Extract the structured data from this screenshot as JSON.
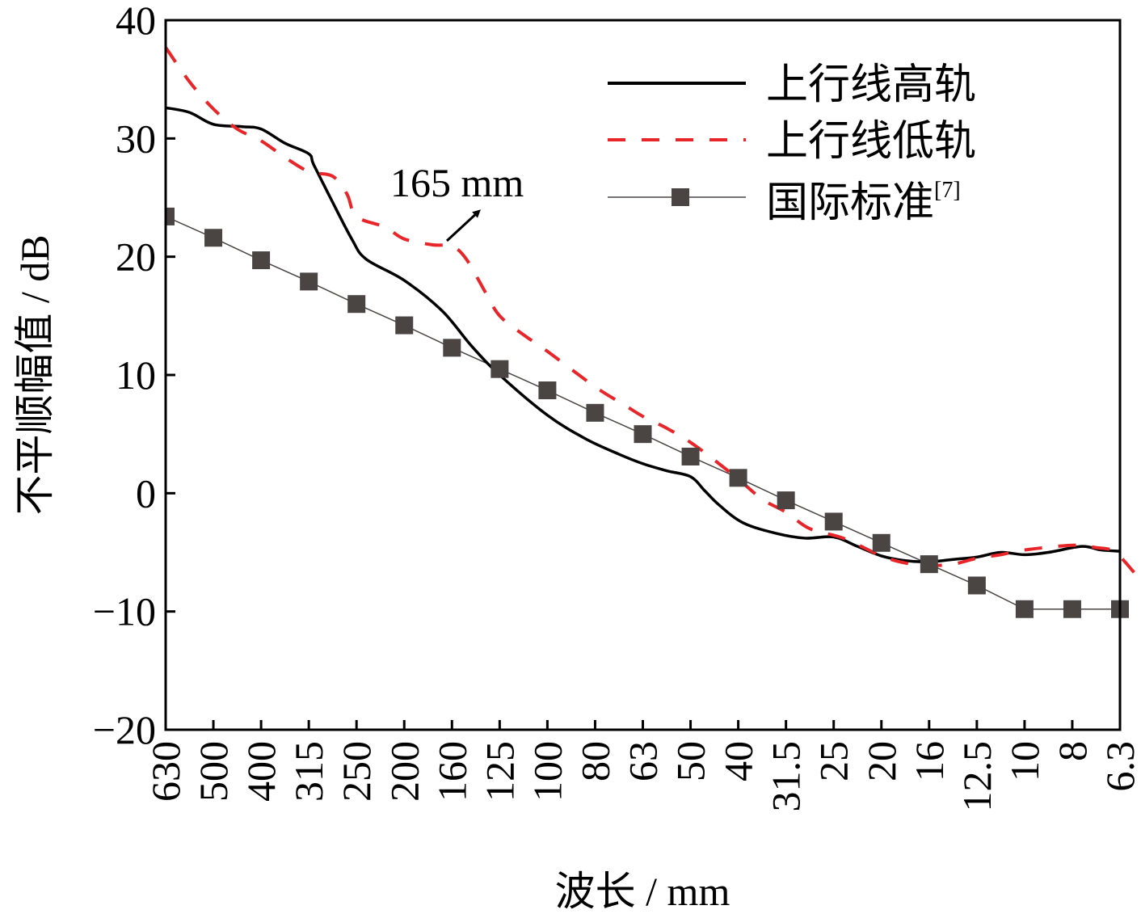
{
  "chart_data": {
    "type": "line",
    "title": "",
    "xlabel": "波长 / mm",
    "ylabel": "不平顺幅值 / dB",
    "categories": [
      "630",
      "500",
      "400",
      "315",
      "250",
      "200",
      "160",
      "125",
      "100",
      "80",
      "63",
      "50",
      "40",
      "31.5",
      "25",
      "20",
      "16",
      "12.5",
      "10",
      "8",
      "6.3"
    ],
    "ylim": [
      -20,
      40
    ],
    "yticks": [
      -20,
      -10,
      0,
      10,
      20,
      30,
      40
    ],
    "ytick_labels": [
      "−20",
      "−10",
      "0",
      "10",
      "20",
      "30",
      "40"
    ],
    "grid": false,
    "legend_position": "top-right",
    "annotation": {
      "text": "165 mm",
      "category_index": 6.05,
      "value": 21.2
    },
    "colors": {
      "high": "#000000",
      "low": "#e8262a",
      "standard": "#4a4543"
    },
    "series": [
      {
        "name": "上行线高轨",
        "style": "solid",
        "points": [
          [
            0,
            32.6
          ],
          [
            0.5,
            32.2
          ],
          [
            1,
            31.2
          ],
          [
            1.6,
            31.0
          ],
          [
            2,
            30.8
          ],
          [
            2.5,
            29.6
          ],
          [
            3,
            28.7
          ],
          [
            3.1,
            27.8
          ],
          [
            3.45,
            25.0
          ],
          [
            3.9,
            21.5
          ],
          [
            4.2,
            19.8
          ],
          [
            5,
            18.0
          ],
          [
            5.8,
            15.4
          ],
          [
            6.4,
            12.5
          ],
          [
            7,
            10.0
          ],
          [
            8,
            6.6
          ],
          [
            8.8,
            4.6
          ],
          [
            9.5,
            3.3
          ],
          [
            10,
            2.5
          ],
          [
            10.5,
            1.9
          ],
          [
            11,
            1.4
          ],
          [
            11.3,
            0.2
          ],
          [
            11.6,
            -1.0
          ],
          [
            12.1,
            -2.5
          ],
          [
            12.8,
            -3.4
          ],
          [
            13.4,
            -3.8
          ],
          [
            14,
            -3.7
          ],
          [
            14.5,
            -4.5
          ],
          [
            15,
            -5.3
          ],
          [
            15.5,
            -5.7
          ],
          [
            16,
            -5.8
          ],
          [
            16.5,
            -5.6
          ],
          [
            17,
            -5.4
          ],
          [
            17.5,
            -5.0
          ],
          [
            18,
            -5.2
          ],
          [
            18.5,
            -5.0
          ],
          [
            19.2,
            -4.5
          ],
          [
            19.6,
            -4.8
          ],
          [
            20,
            -4.9
          ]
        ]
      },
      {
        "name": "上行线低轨",
        "style": "dashed",
        "points": [
          [
            0,
            37.7
          ],
          [
            0.5,
            34.8
          ],
          [
            1,
            32.5
          ],
          [
            1.5,
            30.8
          ],
          [
            2,
            29.8
          ],
          [
            2.5,
            28.4
          ],
          [
            3,
            27.2
          ],
          [
            3.5,
            26.8
          ],
          [
            3.8,
            25.3
          ],
          [
            4.0,
            23.4
          ],
          [
            4.6,
            22.5
          ],
          [
            5,
            21.5
          ],
          [
            5.6,
            21.0
          ],
          [
            6,
            20.9
          ],
          [
            6.3,
            19.8
          ],
          [
            6.7,
            17.0
          ],
          [
            7,
            15.0
          ],
          [
            7.5,
            13.4
          ],
          [
            8,
            12.0
          ],
          [
            9,
            9.0
          ],
          [
            9.6,
            7.5
          ],
          [
            10,
            6.5
          ],
          [
            10.5,
            5.5
          ],
          [
            11,
            4.3
          ],
          [
            11.5,
            2.8
          ],
          [
            12,
            1.2
          ],
          [
            12.5,
            -0.5
          ],
          [
            13,
            -1.6
          ],
          [
            13.5,
            -3.0
          ],
          [
            14.2,
            -3.8
          ],
          [
            15,
            -5.3
          ],
          [
            15.5,
            -5.9
          ],
          [
            16,
            -6.1
          ],
          [
            16.5,
            -6.0
          ],
          [
            17,
            -5.5
          ],
          [
            17.5,
            -5.2
          ],
          [
            18,
            -4.8
          ],
          [
            19,
            -4.4
          ],
          [
            19.5,
            -4.6
          ],
          [
            19.9,
            -5.0
          ],
          [
            20.4,
            -7.2
          ]
        ]
      },
      {
        "name": "国际标准[7]",
        "style": "line-marker",
        "values": [
          23.4,
          21.6,
          19.7,
          17.9,
          16.0,
          14.2,
          12.3,
          10.5,
          8.7,
          6.8,
          5.0,
          3.1,
          1.3,
          -0.6,
          -2.4,
          -4.2,
          -6.0,
          -7.8,
          -9.8,
          -9.8,
          -9.8
        ]
      }
    ],
    "legend": {
      "items": [
        {
          "label": "上行线高轨"
        },
        {
          "label": "上行线低轨"
        },
        {
          "label": "国际标准",
          "sup": "[7]"
        }
      ]
    }
  }
}
